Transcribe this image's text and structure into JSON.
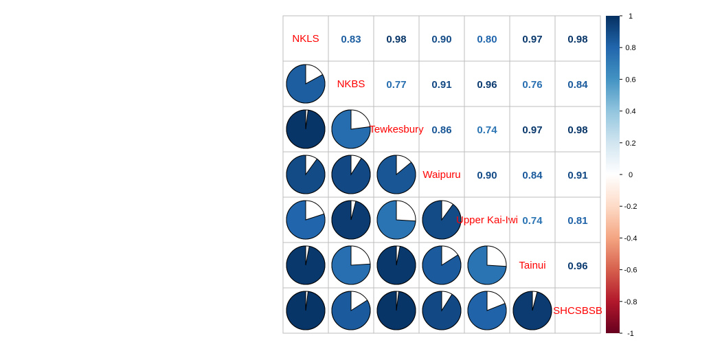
{
  "chart_data": {
    "type": "heatmap",
    "method_lower": "pie",
    "method_upper": "number",
    "labels": [
      "NKLS",
      "NKBS",
      "Tewkesbury",
      "Waipuru",
      "Upper Kai-Iwi",
      "Tainui",
      "SHCSBSB"
    ],
    "matrix": [
      [
        1.0,
        0.83,
        0.98,
        0.9,
        0.8,
        0.97,
        0.98
      ],
      [
        0.83,
        1.0,
        0.77,
        0.91,
        0.96,
        0.76,
        0.84
      ],
      [
        0.98,
        0.77,
        1.0,
        0.86,
        0.74,
        0.97,
        0.98
      ],
      [
        0.9,
        0.91,
        0.86,
        1.0,
        0.9,
        0.84,
        0.91
      ],
      [
        0.8,
        0.96,
        0.74,
        0.9,
        1.0,
        0.74,
        0.81
      ],
      [
        0.97,
        0.76,
        0.97,
        0.84,
        0.74,
        1.0,
        0.96
      ],
      [
        0.98,
        0.84,
        0.98,
        0.91,
        0.81,
        0.96,
        1.0
      ]
    ],
    "number_labels": [
      [
        "",
        "0.83",
        "0.98",
        "0.90",
        "0.80",
        "0.97",
        "0.98"
      ],
      [
        "",
        "",
        "0.77",
        "0.91",
        "0.96",
        "0.76",
        "0.84"
      ],
      [
        "",
        "",
        "",
        "0.86",
        "0.74",
        "0.97",
        "0.98"
      ],
      [
        "",
        "",
        "",
        "",
        "0.90",
        "0.84",
        "0.91"
      ],
      [
        "",
        "",
        "",
        "",
        "",
        "0.74",
        "0.81"
      ],
      [
        "",
        "",
        "",
        "",
        "",
        "",
        "0.96"
      ],
      [
        "",
        "",
        "",
        "",
        "",
        "",
        ""
      ]
    ],
    "colorbar_ticks": [
      "1",
      "0.8",
      "0.6",
      "0.4",
      "0.2",
      "0",
      "-0.2",
      "-0.4",
      "-0.6",
      "-0.8",
      "-1"
    ],
    "colorbar_range": [
      -1,
      1
    ],
    "label_color": "#FF0000",
    "color_stops": [
      "#67001F",
      "#B2182B",
      "#D6604D",
      "#F4A582",
      "#FDDBC7",
      "#FFFFFF",
      "#D1E5F0",
      "#92C5DE",
      "#4393C3",
      "#2166AC",
      "#053061"
    ],
    "grid_color": "#BEBEBE"
  }
}
